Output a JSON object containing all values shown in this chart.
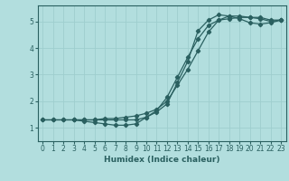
{
  "background_color": "#b2dede",
  "grid_color": "#9ecece",
  "line_color": "#2a6060",
  "marker": "D",
  "markersize": 2.2,
  "linewidth": 0.9,
  "xlabel": "Humidex (Indice chaleur)",
  "xlabel_fontsize": 6.5,
  "tick_fontsize": 5.5,
  "xlim": [
    -0.5,
    23.5
  ],
  "ylim": [
    0.5,
    5.6
  ],
  "xticks": [
    0,
    1,
    2,
    3,
    4,
    5,
    6,
    7,
    8,
    9,
    10,
    11,
    12,
    13,
    14,
    15,
    16,
    17,
    18,
    19,
    20,
    21,
    22,
    23
  ],
  "yticks": [
    1,
    2,
    3,
    4,
    5
  ],
  "curve1_x": [
    0,
    1,
    2,
    3,
    4,
    5,
    6,
    7,
    8,
    9,
    10,
    11,
    12,
    13,
    14,
    15,
    16,
    17,
    18,
    19,
    20,
    21,
    22,
    23
  ],
  "curve1_y": [
    1.3,
    1.3,
    1.3,
    1.3,
    1.25,
    1.2,
    1.15,
    1.1,
    1.1,
    1.15,
    1.4,
    1.6,
    1.9,
    2.7,
    3.5,
    4.65,
    5.05,
    5.25,
    5.2,
    5.1,
    4.95,
    4.9,
    4.95,
    5.05
  ],
  "curve2_x": [
    0,
    1,
    2,
    3,
    4,
    5,
    6,
    7,
    8,
    9,
    10,
    11,
    12,
    13,
    14,
    15,
    16,
    17,
    18,
    19,
    20,
    21,
    22,
    23
  ],
  "curve2_y": [
    1.3,
    1.3,
    1.3,
    1.3,
    1.3,
    1.3,
    1.35,
    1.35,
    1.4,
    1.45,
    1.55,
    1.7,
    2.0,
    2.6,
    3.2,
    3.9,
    4.6,
    5.05,
    5.2,
    5.2,
    5.15,
    5.1,
    5.0,
    5.05
  ],
  "curve3_x": [
    3,
    4,
    5,
    6,
    7,
    8,
    9,
    10,
    11,
    12,
    13,
    14,
    15,
    16,
    17,
    18,
    19,
    20,
    21,
    22,
    23
  ],
  "curve3_y": [
    1.3,
    1.3,
    1.3,
    1.3,
    1.3,
    1.3,
    1.3,
    1.4,
    1.65,
    2.15,
    2.9,
    3.65,
    4.35,
    4.85,
    5.05,
    5.1,
    5.15,
    5.15,
    5.15,
    5.05,
    5.05
  ]
}
